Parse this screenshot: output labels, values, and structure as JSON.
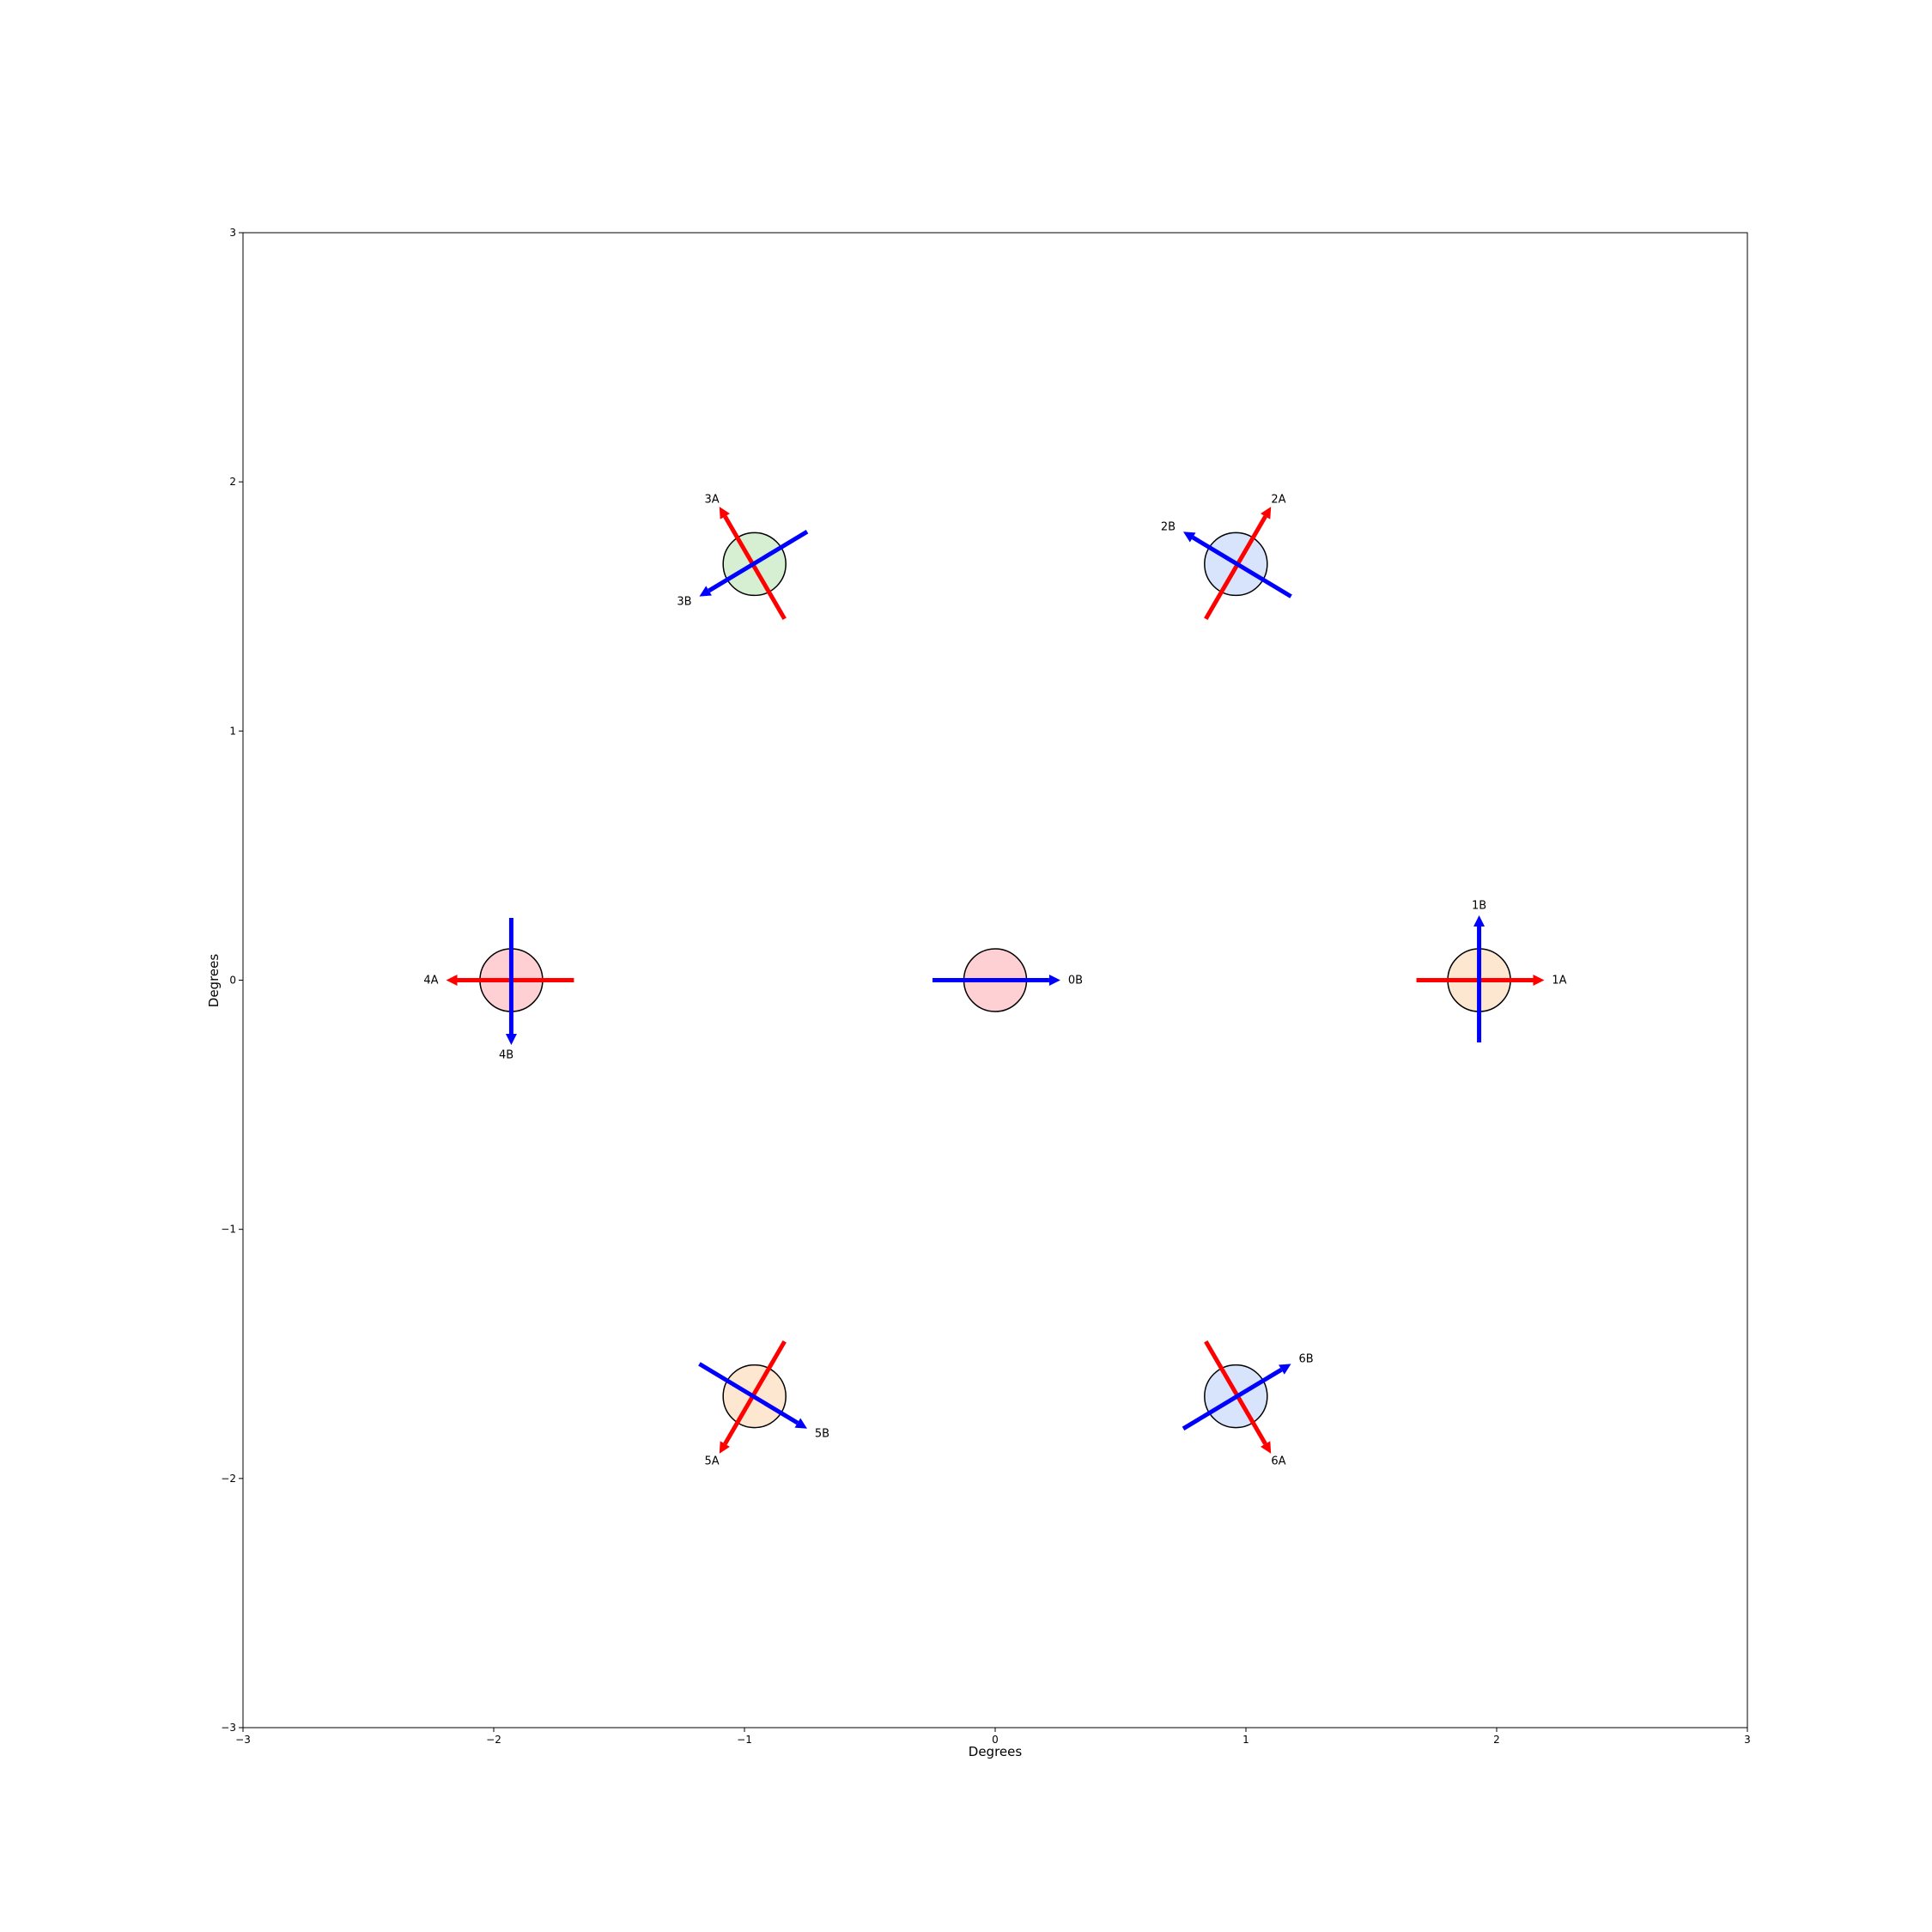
{
  "chart_data": {
    "type": "scatter",
    "title": "",
    "xlabel": "Degrees",
    "ylabel": "Degrees",
    "xlim": [
      -3,
      3
    ],
    "ylim": [
      -3,
      3
    ],
    "xticks": [
      -3,
      -2,
      -1,
      0,
      1,
      2,
      3
    ],
    "yticks": [
      -3,
      -2,
      -1,
      0,
      1,
      2,
      3
    ],
    "grid": false,
    "colors": {
      "arrow_a": "#ff0000",
      "arrow_b": "#0000ff",
      "outline": "#000000"
    },
    "circle_radius": 0.125,
    "fields": [
      {
        "id": 0,
        "x": 0.0,
        "y": 0.0,
        "fill": "#ffd0d3",
        "arrows": [
          {
            "name": "0B",
            "color": "#0000ff",
            "from": [
              -0.25,
              0.0
            ],
            "to": [
              0.26,
              0.0
            ],
            "label_at": [
              0.32,
              0.0
            ]
          }
        ]
      },
      {
        "id": 1,
        "x": 1.93,
        "y": 0.0,
        "fill": "#fde7d1",
        "arrows": [
          {
            "name": "1A",
            "color": "#ff0000",
            "from": [
              1.68,
              0.0
            ],
            "to": [
              2.19,
              0.0
            ],
            "label_at": [
              2.25,
              0.0
            ]
          },
          {
            "name": "1B",
            "color": "#0000ff",
            "from": [
              1.93,
              -0.25
            ],
            "to": [
              1.93,
              0.26
            ],
            "label_at": [
              1.93,
              0.3
            ]
          }
        ]
      },
      {
        "id": 2,
        "x": 0.96,
        "y": 1.67,
        "fill": "#d8e4fb",
        "arrows": [
          {
            "name": "2A",
            "color": "#ff0000",
            "from": [
              0.84,
              1.45
            ],
            "to": [
              1.1,
              1.9
            ],
            "label_at": [
              1.13,
              1.93
            ]
          },
          {
            "name": "2B",
            "color": "#0000ff",
            "from": [
              1.18,
              1.54
            ],
            "to": [
              0.75,
              1.8
            ],
            "label_at": [
              0.69,
              1.82
            ]
          }
        ]
      },
      {
        "id": 3,
        "x": -0.96,
        "y": 1.67,
        "fill": "#d6efd3",
        "arrows": [
          {
            "name": "3A",
            "color": "#ff0000",
            "from": [
              -0.84,
              1.45
            ],
            "to": [
              -1.1,
              1.9
            ],
            "label_at": [
              -1.13,
              1.93
            ]
          },
          {
            "name": "3B",
            "color": "#0000ff",
            "from": [
              -0.75,
              1.8
            ],
            "to": [
              -1.18,
              1.54
            ],
            "label_at": [
              -1.24,
              1.52
            ]
          }
        ]
      },
      {
        "id": 4,
        "x": -1.93,
        "y": 0.0,
        "fill": "#ffd0d3",
        "arrows": [
          {
            "name": "4A",
            "color": "#ff0000",
            "from": [
              -1.68,
              0.0
            ],
            "to": [
              -2.19,
              0.0
            ],
            "label_at": [
              -2.25,
              0.0
            ]
          },
          {
            "name": "4B",
            "color": "#0000ff",
            "from": [
              -1.93,
              0.25
            ],
            "to": [
              -1.93,
              -0.26
            ],
            "label_at": [
              -1.95,
              -0.3
            ]
          }
        ]
      },
      {
        "id": 5,
        "x": -0.96,
        "y": -1.67,
        "fill": "#fde7d1",
        "arrows": [
          {
            "name": "5A",
            "color": "#ff0000",
            "from": [
              -0.84,
              -1.45
            ],
            "to": [
              -1.1,
              -1.9
            ],
            "label_at": [
              -1.13,
              -1.93
            ]
          },
          {
            "name": "5B",
            "color": "#0000ff",
            "from": [
              -1.18,
              -1.54
            ],
            "to": [
              -0.75,
              -1.8
            ],
            "label_at": [
              -0.69,
              -1.82
            ]
          }
        ]
      },
      {
        "id": 6,
        "x": 0.96,
        "y": -1.67,
        "fill": "#d8e4fb",
        "arrows": [
          {
            "name": "6A",
            "color": "#ff0000",
            "from": [
              0.84,
              -1.45
            ],
            "to": [
              1.1,
              -1.9
            ],
            "label_at": [
              1.13,
              -1.93
            ]
          },
          {
            "name": "6B",
            "color": "#0000ff",
            "from": [
              0.75,
              -1.8
            ],
            "to": [
              1.18,
              -1.54
            ],
            "label_at": [
              1.24,
              -1.52
            ]
          }
        ]
      }
    ]
  }
}
